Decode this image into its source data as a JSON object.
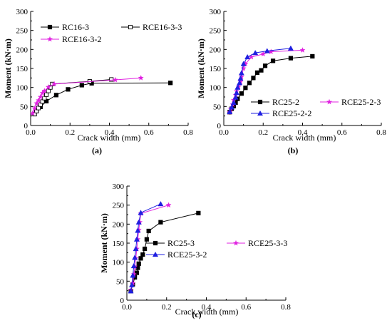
{
  "chart_data": [
    {
      "type": "line",
      "panel_label": "(a)",
      "xlabel": "Crack width (mm)",
      "ylabel": "Moment (kN·m)",
      "xlim": [
        0,
        0.8
      ],
      "ylim": [
        0,
        300
      ],
      "xticks": [
        0.0,
        0.2,
        0.4,
        0.6,
        0.8
      ],
      "xtick_labels": [
        "0.0",
        "0.2",
        "0.4",
        "0.6",
        "0.8"
      ],
      "yticks": [
        0,
        50,
        100,
        150,
        200,
        250,
        300
      ],
      "ytick_labels": [
        "0",
        "50",
        "100",
        "150",
        "200",
        "250",
        "300"
      ],
      "grid": false,
      "legend_placement": "top-left",
      "series": [
        {
          "name": "RC16-3",
          "marker": "filled-square",
          "color": "#000000",
          "x": [
            0.02,
            0.03,
            0.05,
            0.08,
            0.13,
            0.19,
            0.26,
            0.31,
            0.71
          ],
          "y": [
            30,
            38,
            49,
            64,
            80,
            95,
            106,
            111,
            112
          ]
        },
        {
          "name": "RCE16-3-3",
          "marker": "open-square",
          "color": "#000000",
          "x": [
            0.02,
            0.03,
            0.04,
            0.05,
            0.06,
            0.07,
            0.08,
            0.09,
            0.1,
            0.11,
            0.3,
            0.41
          ],
          "y": [
            30,
            38,
            46,
            55,
            63,
            72,
            81,
            91,
            100,
            109,
            116,
            121
          ]
        },
        {
          "name": "RCE16-3-2",
          "marker": "star",
          "color": "#e020e0",
          "x": [
            0.01,
            0.02,
            0.03,
            0.04,
            0.05,
            0.06,
            0.07,
            0.09,
            0.12,
            0.43,
            0.56
          ],
          "y": [
            32,
            45,
            58,
            66,
            75,
            85,
            91,
            101,
            109,
            120,
            125
          ]
        }
      ]
    },
    {
      "type": "line",
      "panel_label": "(b)",
      "xlabel": "Crack width (mm)",
      "ylabel": "Moment (kN·m)",
      "xlim": [
        0,
        0.8
      ],
      "ylim": [
        0,
        300
      ],
      "xticks": [
        0.0,
        0.2,
        0.4,
        0.6,
        0.8
      ],
      "xtick_labels": [
        "0.0",
        "0.2",
        "0.4",
        "0.6",
        "0.8"
      ],
      "yticks": [
        0,
        50,
        100,
        150,
        200,
        250,
        300
      ],
      "ytick_labels": [
        "0",
        "50",
        "100",
        "150",
        "200",
        "250",
        "300"
      ],
      "grid": false,
      "legend_placement": "lower-right",
      "series": [
        {
          "name": "RC25-2",
          "marker": "filled-square",
          "color": "#000000",
          "x": [
            0.03,
            0.04,
            0.05,
            0.06,
            0.07,
            0.09,
            0.11,
            0.13,
            0.15,
            0.17,
            0.19,
            0.21,
            0.25,
            0.34,
            0.45
          ],
          "y": [
            35,
            44,
            51,
            60,
            70,
            84,
            99,
            112,
            125,
            139,
            145,
            157,
            170,
            177,
            182
          ]
        },
        {
          "name": "RCE25-2-3",
          "marker": "star",
          "color": "#e020e0",
          "x": [
            0.03,
            0.035,
            0.045,
            0.05,
            0.06,
            0.065,
            0.075,
            0.085,
            0.09,
            0.1,
            0.11,
            0.14,
            0.2,
            0.24,
            0.4
          ],
          "y": [
            35,
            44,
            55,
            67,
            80,
            90,
            102,
            115,
            128,
            150,
            162,
            180,
            188,
            194,
            198
          ]
        },
        {
          "name": "RCE25-2-2",
          "marker": "filled-triangle",
          "color": "#1f1fe0",
          "x": [
            0.03,
            0.04,
            0.05,
            0.06,
            0.065,
            0.07,
            0.08,
            0.085,
            0.09,
            0.1,
            0.12,
            0.16,
            0.22,
            0.34
          ],
          "y": [
            36,
            48,
            60,
            74,
            86,
            100,
            112,
            124,
            138,
            162,
            180,
            191,
            196,
            203
          ]
        }
      ]
    },
    {
      "type": "line",
      "panel_label": "(c)",
      "xlabel": "Crack width (mm)",
      "ylabel": "Moment (kN·m)",
      "xlim": [
        0,
        0.8
      ],
      "ylim": [
        0,
        300
      ],
      "xticks": [
        0.0,
        0.2,
        0.4,
        0.6,
        0.8
      ],
      "xtick_labels": [
        "0.0",
        "0.2",
        "0.4",
        "0.6",
        "0.8"
      ],
      "yticks": [
        0,
        50,
        100,
        150,
        200,
        250,
        300
      ],
      "ytick_labels": [
        "0",
        "50",
        "100",
        "150",
        "200",
        "250",
        "300"
      ],
      "grid": false,
      "legend_placement": "lower-center",
      "series": [
        {
          "name": "RC25-3",
          "marker": "filled-square",
          "color": "#000000",
          "x": [
            0.02,
            0.03,
            0.04,
            0.05,
            0.055,
            0.06,
            0.07,
            0.08,
            0.09,
            0.1,
            0.11,
            0.17,
            0.36
          ],
          "y": [
            24,
            42,
            60,
            72,
            85,
            96,
            110,
            120,
            135,
            160,
            182,
            205,
            229
          ]
        },
        {
          "name": "RCE25-3-3",
          "marker": "star",
          "color": "#e020e0",
          "x": [
            0.02,
            0.03,
            0.035,
            0.04,
            0.045,
            0.05,
            0.055,
            0.06,
            0.065,
            0.07,
            0.21
          ],
          "y": [
            26,
            45,
            68,
            88,
            110,
            135,
            160,
            185,
            205,
            228,
            250
          ]
        },
        {
          "name": "RCE25-3-2",
          "marker": "filled-triangle",
          "color": "#1f1fe0",
          "x": [
            0.02,
            0.025,
            0.03,
            0.035,
            0.04,
            0.045,
            0.05,
            0.055,
            0.06,
            0.07,
            0.17
          ],
          "y": [
            24,
            40,
            65,
            90,
            112,
            135,
            160,
            183,
            205,
            230,
            253
          ]
        }
      ]
    }
  ]
}
